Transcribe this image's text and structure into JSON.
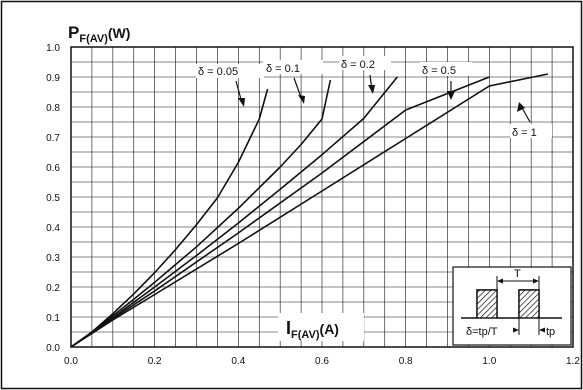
{
  "chart_data": {
    "type": "line",
    "title": "",
    "ylabel_main": "P",
    "ylabel_sub": "F(AV)",
    "ylabel_unit": "(W)",
    "xlabel_main": "I",
    "xlabel_sub": "F(AV)",
    "xlabel_unit": "(A)",
    "xlim": [
      0,
      1.2
    ],
    "ylim": [
      0,
      1.0
    ],
    "x_ticks": [
      "0.0",
      "0.2",
      "0.4",
      "0.6",
      "0.8",
      "1.0",
      "1.2"
    ],
    "y_ticks": [
      "0.0",
      "0.1",
      "0.2",
      "0.3",
      "0.4",
      "0.5",
      "0.6",
      "0.7",
      "0.8",
      "0.9",
      "1.0"
    ],
    "grid": true,
    "series": [
      {
        "name": "δ = 0.05",
        "x": [
          0,
          0.05,
          0.1,
          0.15,
          0.2,
          0.25,
          0.3,
          0.35,
          0.4,
          0.45,
          0.47
        ],
        "y": [
          0,
          0.05,
          0.111,
          0.177,
          0.248,
          0.325,
          0.408,
          0.497,
          0.615,
          0.76,
          0.86
        ]
      },
      {
        "name": "δ = 0.1",
        "x": [
          0,
          0.05,
          0.1,
          0.15,
          0.2,
          0.3,
          0.4,
          0.5,
          0.55,
          0.6,
          0.62
        ],
        "y": [
          0,
          0.049,
          0.104,
          0.159,
          0.216,
          0.334,
          0.462,
          0.6,
          0.675,
          0.76,
          0.89
        ]
      },
      {
        "name": "δ = 0.2",
        "x": [
          0,
          0.05,
          0.1,
          0.2,
          0.3,
          0.4,
          0.5,
          0.6,
          0.7,
          0.78
        ],
        "y": [
          0,
          0.048,
          0.098,
          0.2,
          0.305,
          0.413,
          0.526,
          0.641,
          0.762,
          0.9
        ]
      },
      {
        "name": "δ = 0.5",
        "x": [
          0,
          0.05,
          0.1,
          0.2,
          0.4,
          0.6,
          0.8,
          1.0
        ],
        "y": [
          0,
          0.047,
          0.094,
          0.187,
          0.38,
          0.58,
          0.79,
          0.9
        ]
      },
      {
        "name": "δ = 1",
        "x": [
          0,
          0.05,
          0.1,
          0.2,
          0.4,
          0.6,
          0.8,
          1.0,
          1.14
        ],
        "y": [
          0,
          0.045,
          0.09,
          0.175,
          0.345,
          0.52,
          0.695,
          0.87,
          0.91
        ]
      }
    ],
    "inset": {
      "t_label": "T",
      "formula": "δ=tp/T",
      "tp_label": "tp"
    }
  }
}
